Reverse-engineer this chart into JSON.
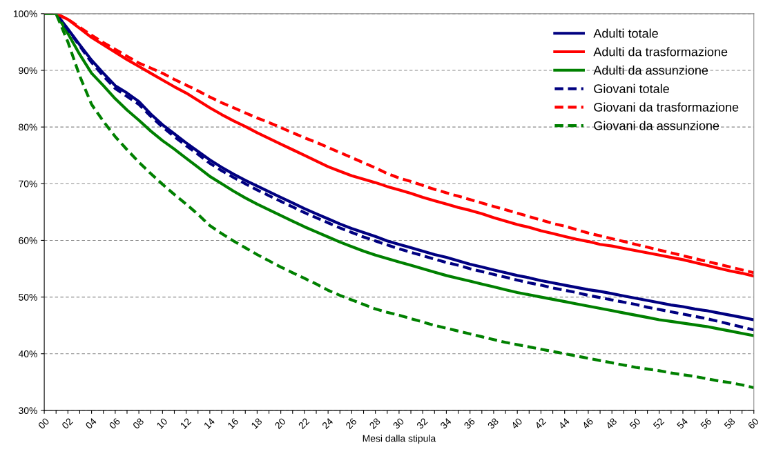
{
  "chart_data": {
    "type": "line",
    "xlabel": "Mesi dalla stipula",
    "categories": [
      "00",
      null,
      "02",
      null,
      "04",
      null,
      "06",
      null,
      "08",
      null,
      "10",
      null,
      "12",
      null,
      "14",
      null,
      "16",
      null,
      "18",
      null,
      "20",
      null,
      "22",
      null,
      "24",
      null,
      "26",
      null,
      "28",
      null,
      "30",
      null,
      "32",
      null,
      "34",
      null,
      "36",
      null,
      "38",
      null,
      "40",
      null,
      "42",
      null,
      "44",
      null,
      "46",
      null,
      "48",
      null,
      "50",
      null,
      "52",
      null,
      "54",
      null,
      "56",
      null,
      "58",
      null,
      "60"
    ],
    "ylim": [
      30,
      100
    ],
    "yticks": [
      {
        "value": 30,
        "label": "30%"
      },
      {
        "value": 40,
        "label": "40%"
      },
      {
        "value": 50,
        "label": "50%"
      },
      {
        "value": 60,
        "label": "60%"
      },
      {
        "value": 70,
        "label": "70%"
      },
      {
        "value": 80,
        "label": "80%"
      },
      {
        "value": 90,
        "label": "90%"
      },
      {
        "value": 100,
        "label": "100%"
      }
    ],
    "grid": "y",
    "legend": "top right",
    "marker": "none",
    "series": [
      {
        "name": "Adulti totale",
        "color": "#000080",
        "line_style": "solid",
        "values": [
          100,
          100,
          97.3,
          94.5,
          91.8,
          89.5,
          87.3,
          86.0,
          84.5,
          82.3,
          80.4,
          78.8,
          77.2,
          75.7,
          74.2,
          72.9,
          71.7,
          70.6,
          69.6,
          68.6,
          67.6,
          66.6,
          65.6,
          64.7,
          63.8,
          62.9,
          62.1,
          61.4,
          60.7,
          59.9,
          59.3,
          58.7,
          58.1,
          57.5,
          57.0,
          56.4,
          55.8,
          55.3,
          54.8,
          54.3,
          53.8,
          53.4,
          52.9,
          52.5,
          52.1,
          51.7,
          51.3,
          51.0,
          50.6,
          50.2,
          49.8,
          49.4,
          49.0,
          48.6,
          48.3,
          47.9,
          47.6,
          47.2,
          46.8,
          46.4,
          46.0
        ]
      },
      {
        "name": "Adulti da trasformazione",
        "color": "#ff0000",
        "line_style": "solid",
        "values": [
          100,
          100,
          99.0,
          97.4,
          95.8,
          94.5,
          93.2,
          91.9,
          90.7,
          89.5,
          88.3,
          87.1,
          86.0,
          84.7,
          83.4,
          82.2,
          81.1,
          80.1,
          79.0,
          78.0,
          77.0,
          76.0,
          75.0,
          74.0,
          73.0,
          72.2,
          71.4,
          70.8,
          70.2,
          69.5,
          68.9,
          68.3,
          67.6,
          67.0,
          66.4,
          65.8,
          65.3,
          64.7,
          64.0,
          63.4,
          62.8,
          62.3,
          61.7,
          61.2,
          60.7,
          60.2,
          59.8,
          59.3,
          59.0,
          58.6,
          58.2,
          57.8,
          57.4,
          57.0,
          56.6,
          56.1,
          55.6,
          55.1,
          54.6,
          54.2,
          53.7
        ]
      },
      {
        "name": "Adulti da assunzione",
        "color": "#008000",
        "line_style": "solid",
        "values": [
          100,
          100,
          96.5,
          92.8,
          89.5,
          87.3,
          85.0,
          83.0,
          81.2,
          79.3,
          77.6,
          76.1,
          74.5,
          72.9,
          71.3,
          70.0,
          68.7,
          67.5,
          66.4,
          65.4,
          64.4,
          63.4,
          62.4,
          61.5,
          60.6,
          59.7,
          58.9,
          58.1,
          57.4,
          56.8,
          56.2,
          55.6,
          55.0,
          54.4,
          53.8,
          53.3,
          52.8,
          52.3,
          51.8,
          51.3,
          50.8,
          50.4,
          50.0,
          49.6,
          49.2,
          48.8,
          48.4,
          48.0,
          47.6,
          47.2,
          46.8,
          46.4,
          46.0,
          45.7,
          45.4,
          45.1,
          44.8,
          44.4,
          44.0,
          43.6,
          43.2
        ]
      },
      {
        "name": "Giovani totale",
        "color": "#000080",
        "line_style": "dashed",
        "values": [
          100,
          100,
          97.2,
          94.3,
          91.4,
          89.0,
          86.8,
          85.4,
          84.0,
          81.9,
          80.0,
          78.3,
          76.7,
          75.2,
          73.6,
          72.3,
          71.1,
          70.0,
          68.9,
          67.9,
          66.9,
          65.9,
          64.9,
          64.0,
          63.1,
          62.2,
          61.4,
          60.6,
          59.9,
          59.2,
          58.5,
          57.9,
          57.3,
          56.7,
          56.1,
          55.6,
          55.0,
          54.5,
          54.0,
          53.5,
          53.0,
          52.5,
          52.1,
          51.6,
          51.2,
          50.8,
          50.3,
          49.9,
          49.5,
          49.1,
          48.7,
          48.2,
          47.8,
          47.4,
          47.0,
          46.6,
          46.2,
          45.7,
          45.2,
          44.7,
          44.2
        ]
      },
      {
        "name": "Giovani da trasformazione",
        "color": "#ff0000",
        "line_style": "dashed",
        "values": [
          100,
          100,
          99.0,
          97.6,
          96.2,
          94.9,
          93.7,
          92.5,
          91.3,
          90.4,
          89.5,
          88.4,
          87.4,
          86.4,
          85.3,
          84.3,
          83.4,
          82.5,
          81.6,
          80.8,
          79.9,
          79.0,
          78.1,
          77.3,
          76.4,
          75.5,
          74.6,
          73.7,
          72.8,
          71.8,
          71.0,
          70.4,
          69.7,
          69.0,
          68.4,
          67.8,
          67.2,
          66.6,
          66.0,
          65.4,
          64.8,
          64.2,
          63.6,
          63.0,
          62.5,
          61.9,
          61.3,
          60.8,
          60.3,
          59.8,
          59.3,
          58.8,
          58.3,
          57.8,
          57.3,
          56.8,
          56.3,
          55.8,
          55.3,
          54.8,
          54.3
        ]
      },
      {
        "name": "Giovani da assunzione",
        "color": "#008000",
        "line_style": "dashed",
        "values": [
          100,
          100,
          95.0,
          89.0,
          84.0,
          81.0,
          78.3,
          76.0,
          73.8,
          71.8,
          69.9,
          68.1,
          66.4,
          64.6,
          62.6,
          61.2,
          59.9,
          58.7,
          57.5,
          56.4,
          55.3,
          54.3,
          53.3,
          52.3,
          51.2,
          50.3,
          49.5,
          48.7,
          47.9,
          47.3,
          46.8,
          46.2,
          45.6,
          45.0,
          44.5,
          44.0,
          43.5,
          43.0,
          42.5,
          42.0,
          41.6,
          41.2,
          40.8,
          40.4,
          40.0,
          39.6,
          39.2,
          38.8,
          38.4,
          38.0,
          37.6,
          37.3,
          37.0,
          36.6,
          36.3,
          36.0,
          35.6,
          35.2,
          34.9,
          34.5,
          34.0
        ]
      }
    ]
  }
}
